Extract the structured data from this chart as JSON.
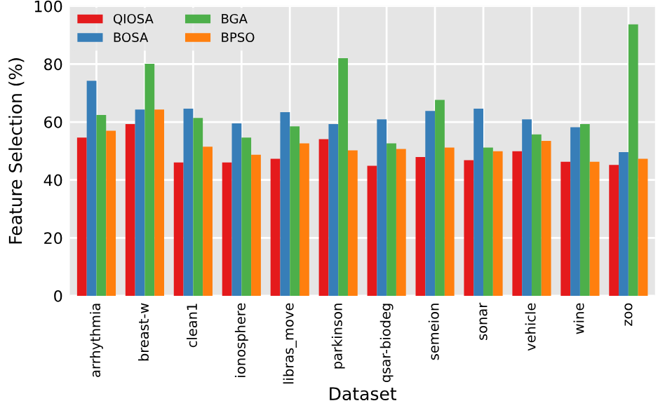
{
  "chart_data": {
    "type": "bar",
    "xlabel": "Dataset",
    "ylabel": "Feature Selection (%)",
    "categories": [
      "arrhythmia",
      "breast-w",
      "clean1",
      "ionosphere",
      "libras_move",
      "parkinson",
      "qsar-biodeg",
      "semeion",
      "sonar",
      "vehicle",
      "wine",
      "zoo"
    ],
    "series": [
      {
        "name": "QIOSA",
        "color": "#e41a1c",
        "values": [
          54.6,
          59.3,
          46,
          46,
          47.3,
          54.1,
          44.9,
          47.9,
          46.8,
          49.9,
          46.3,
          45.2
        ]
      },
      {
        "name": "BOSA",
        "color": "#377eb8",
        "values": [
          74.2,
          64.3,
          64.6,
          59.5,
          63.4,
          59.3,
          60.9,
          63.8,
          64.6,
          60.9,
          58.2,
          49.6
        ]
      },
      {
        "name": "BGA",
        "color": "#4daf4a",
        "values": [
          62.4,
          80.1,
          61.4,
          54.6,
          58.5,
          82,
          52.6,
          67.6,
          51.2,
          55.7,
          59.3,
          93.7
        ]
      },
      {
        "name": "BPSO",
        "color": "#ff7f0e",
        "values": [
          57,
          64.3,
          51.5,
          48.7,
          52.6,
          50.2,
          50.7,
          51.2,
          49.9,
          53.5,
          46.3,
          47.3
        ]
      }
    ],
    "ylim": [
      0,
      100
    ],
    "yticks": [
      0,
      20,
      40,
      60,
      80,
      100
    ],
    "grid": true,
    "legend": "top left"
  }
}
